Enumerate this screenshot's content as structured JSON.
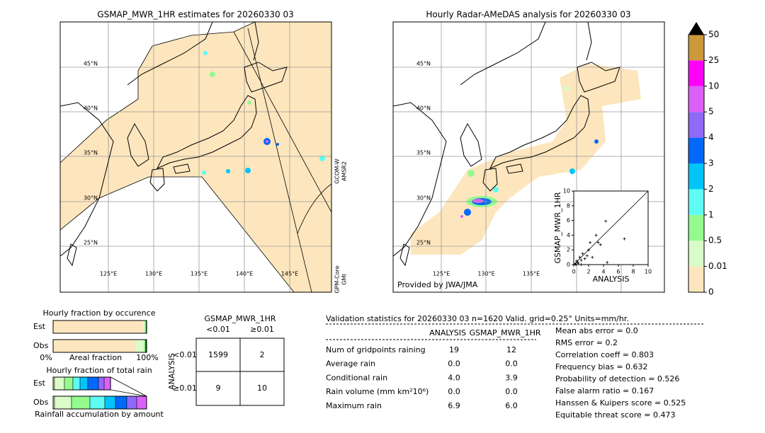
{
  "left_map": {
    "title": "GSMAP_MWR_1HR estimates for 20260330 03",
    "lat_labels": [
      "45°N",
      "40°N",
      "35°N",
      "30°N",
      "25°N"
    ],
    "lon_labels": [
      "125°E",
      "130°E",
      "135°E",
      "140°E",
      "145°E"
    ],
    "swath_labels": [
      "GCOM-W",
      "AMSR2",
      "GPM-Core",
      "GMI"
    ]
  },
  "right_map": {
    "title": "Hourly Radar-AMeDAS analysis for 20260330 03",
    "lat_labels": [
      "45°N",
      "40°N",
      "35°N",
      "30°N",
      "25°N"
    ],
    "lon_labels": [
      "125°E",
      "130°E",
      "135°E"
    ],
    "credit": "Provided by JWA/JMA"
  },
  "scatter": {
    "type": "scatter",
    "x_label": "ANALYSIS",
    "y_label": "GSMAP_MWR_1HR",
    "xlim": [
      0,
      10
    ],
    "ylim": [
      0,
      10
    ],
    "xticks": [
      0,
      2,
      4,
      6,
      8,
      10
    ],
    "yticks": [
      0,
      2,
      4,
      6,
      8,
      10
    ],
    "x": [
      0.2,
      0.4,
      0.6,
      0.8,
      1.0,
      1.2,
      1.5,
      1.8,
      2.0,
      2.5,
      3.0,
      3.3,
      3.6,
      4.3,
      6.8,
      0.3,
      0.5,
      1.0,
      2.2,
      4.5
    ],
    "y": [
      0.1,
      0.5,
      0.2,
      1.0,
      0.6,
      1.5,
      0.8,
      1.2,
      2.0,
      1.0,
      4.0,
      3.0,
      2.7,
      5.9,
      3.5,
      0.0,
      0.3,
      0.0,
      3.0,
      0.3
    ]
  },
  "colorbar": {
    "ticks": [
      0,
      0.01,
      0.5,
      1,
      2,
      3,
      4,
      5,
      10,
      25,
      50
    ],
    "colors": [
      "#fde6bd",
      "#d9fcc9",
      "#94fa8e",
      "#5efcf4",
      "#00c4fa",
      "#0068fb",
      "#9169f8",
      "#dd5ff9",
      "#fc00f7",
      "#cc983c"
    ]
  },
  "occurrence": {
    "title": "Hourly fraction by occurence",
    "x_label": "Areal fraction",
    "x_min_label": "0%",
    "x_max_label": "100%",
    "colors": [
      "#fde6bd",
      "#d9fcc9",
      "#94fa8e",
      "#1c6b1c"
    ],
    "series": [
      {
        "name": "Est",
        "values": [
          96.2,
          1.5,
          1.5,
          0.8
        ]
      },
      {
        "name": "Obs",
        "values": [
          88.6,
          8.3,
          1.5,
          1.5
        ]
      }
    ]
  },
  "total_rain": {
    "title": "Hourly fraction of total rain",
    "x_label": "Rainfall accumulation by amount",
    "colors": [
      "#fde6bd",
      "#d9fcc9",
      "#94fa8e",
      "#5efcf4",
      "#00c4fa",
      "#0068fb",
      "#9169f8",
      "#dd5ff9"
    ],
    "series": [
      {
        "name": "Est",
        "values": [
          1.5,
          10.6,
          9.1,
          7.6,
          8.3,
          11.4,
          6.1,
          6.8
        ]
      },
      {
        "name": "Obs",
        "values": [
          1.5,
          18.2,
          19.7,
          15.9,
          11.4,
          12.1,
          10.6,
          10.6
        ]
      }
    ]
  },
  "contingency": {
    "title": "GSMAP_MWR_1HR",
    "col_labels": [
      "<0.01",
      "≥0.01"
    ],
    "row_axis": "ANALYSIS",
    "row_labels": [
      "<0.01",
      "≥0.01"
    ],
    "cells": [
      [
        "1599",
        "2"
      ],
      [
        "9",
        "10"
      ]
    ]
  },
  "validation": {
    "header": "Validation statistics for 20260330 03  n=1620 Valid. grid=0.25° Units=mm/hr.",
    "columns": [
      "ANALYSIS",
      "GSMAP_MWR_1HR"
    ],
    "rows": [
      [
        "Num of gridpoints raining",
        "19",
        "12"
      ],
      [
        "Average rain",
        "0.0",
        "0.0"
      ],
      [
        "Conditional rain",
        "4.0",
        "3.9"
      ],
      [
        "Rain volume (mm km²10⁶)",
        "0.0",
        "0.0"
      ],
      [
        "Maximum rain",
        "6.9",
        "6.0"
      ]
    ],
    "scores": [
      "Mean abs error =    0.0",
      "RMS error =    0.2",
      "Correlation coeff =  0.803",
      "Frequency bias =  0.632",
      "Probability of detection =  0.526",
      "False alarm ratio =  0.167",
      "Hanssen & Kuipers score =  0.525",
      "Equitable threat score =  0.473"
    ]
  }
}
